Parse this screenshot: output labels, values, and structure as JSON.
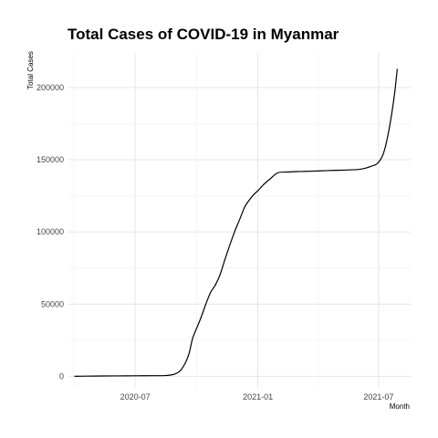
{
  "chart_data": {
    "type": "line",
    "title": "Total Cases of COVID-19 in Myanmar",
    "xlabel": "Month",
    "ylabel": "Total Cases",
    "xlim": [
      "2020-03-23",
      "2021-08-18"
    ],
    "ylim": [
      -8000,
      224000
    ],
    "x_ticks": [
      "2020-07-01",
      "2021-01-01",
      "2021-07-01"
    ],
    "x_tick_labels": [
      "2020-07",
      "2021-01",
      "2021-07"
    ],
    "y_ticks": [
      0,
      50000,
      100000,
      150000,
      200000
    ],
    "y_tick_labels": [
      "0",
      "50000",
      "100000",
      "150000",
      "200000"
    ],
    "grid": true,
    "legend": "none",
    "series": [
      {
        "x": [
          "2020-04-01",
          "2020-05-01",
          "2020-06-01",
          "2020-07-01",
          "2020-08-01",
          "2020-08-15",
          "2020-08-25",
          "2020-09-01",
          "2020-09-07",
          "2020-09-14",
          "2020-09-20",
          "2020-09-25",
          "2020-10-01",
          "2020-10-08",
          "2020-10-15",
          "2020-10-22",
          "2020-10-29",
          "2020-11-05",
          "2020-11-12",
          "2020-11-20",
          "2020-11-27",
          "2020-12-05",
          "2020-12-12",
          "2020-12-19",
          "2020-12-26",
          "2021-01-01",
          "2021-01-10",
          "2021-01-20",
          "2021-01-31",
          "2021-02-15",
          "2021-03-01",
          "2021-03-15",
          "2021-04-01",
          "2021-04-15",
          "2021-05-01",
          "2021-05-15",
          "2021-06-01",
          "2021-06-10",
          "2021-06-20",
          "2021-06-28",
          "2021-07-05",
          "2021-07-10",
          "2021-07-15",
          "2021-07-20",
          "2021-07-25",
          "2021-07-29"
        ],
        "y": [
          0,
          150,
          250,
          350,
          400,
          500,
          1000,
          2000,
          4000,
          9000,
          16000,
          26000,
          33000,
          41000,
          50000,
          58000,
          63000,
          70000,
          80000,
          91000,
          100000,
          109000,
          117000,
          122000,
          126000,
          128500,
          133000,
          137000,
          141000,
          141500,
          141800,
          142000,
          142200,
          142500,
          142700,
          142900,
          143300,
          144000,
          145500,
          147000,
          151000,
          157000,
          167000,
          180000,
          196000,
          213000
        ]
      }
    ]
  }
}
